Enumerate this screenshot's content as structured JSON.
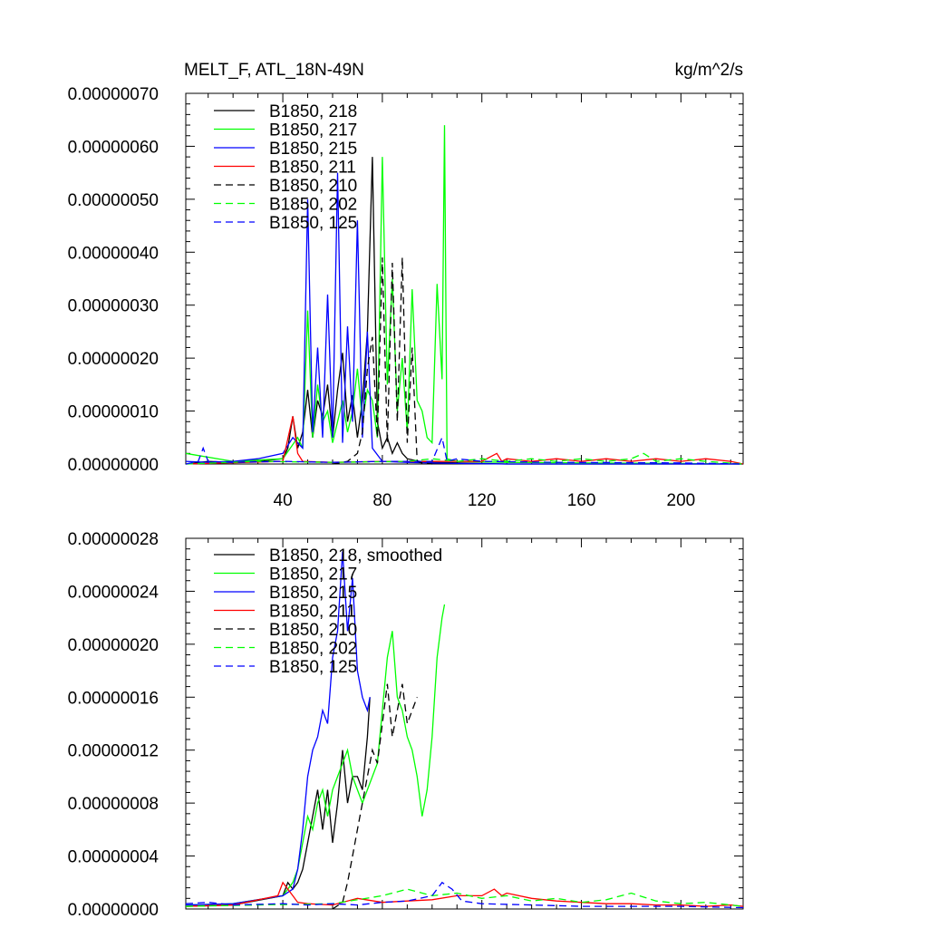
{
  "chart_data": [
    {
      "type": "line",
      "title": "MELT_F, ATL_18N-49N",
      "units": "kg/m^2/s",
      "xlim": [
        1,
        225
      ],
      "ylim": [
        0,
        7e-07
      ],
      "yticks": [
        "0.00000000",
        "0.00000010",
        "0.00000020",
        "0.00000030",
        "0.00000040",
        "0.00000050",
        "0.00000060",
        "0.00000070"
      ],
      "xticks": [
        "40",
        "80",
        "120",
        "160",
        "200"
      ],
      "series": [
        {
          "name": "B1850, 218",
          "color": "#000000",
          "dash": "solid",
          "x": [
            1,
            10,
            20,
            30,
            40,
            42,
            44,
            46,
            48,
            50,
            52,
            54,
            56,
            58,
            60,
            62,
            64,
            66,
            68,
            70,
            72,
            74,
            76,
            78,
            80,
            82,
            84,
            86,
            88,
            90,
            95,
            100,
            110,
            130,
            160,
            200,
            225
          ],
          "y": [
            0,
            5e-09,
            3e-09,
            5e-09,
            1e-08,
            3e-08,
            9e-08,
            3e-08,
            6e-08,
            1.4e-07,
            5e-08,
            1.2e-07,
            9e-08,
            1.5e-07,
            5e-08,
            1.4e-07,
            2.1e-07,
            8e-08,
            1.3e-07,
            5e-08,
            1.2e-07,
            2.5e-07,
            5.8e-07,
            8e-08,
            3e-08,
            5e-08,
            2e-08,
            4e-08,
            2e-08,
            1e-08,
            5e-09,
            3e-09,
            2e-09,
            0,
            0,
            0,
            0
          ]
        },
        {
          "name": "B1850, 217",
          "color": "#00ff00",
          "dash": "solid",
          "x": [
            1,
            20,
            40,
            46,
            48,
            50,
            52,
            54,
            56,
            58,
            60,
            62,
            64,
            66,
            68,
            70,
            72,
            74,
            76,
            78,
            80,
            82,
            84,
            86,
            88,
            90,
            92,
            94,
            96,
            98,
            100,
            102,
            104,
            105,
            106,
            110,
            130,
            160,
            200,
            225
          ],
          "y": [
            2e-08,
            5e-09,
            1e-08,
            5e-08,
            3e-08,
            2.9e-07,
            5e-08,
            1.5e-07,
            8e-08,
            1e-07,
            4e-08,
            8e-08,
            1.2e-07,
            6e-08,
            1e-07,
            1.8e-07,
            8e-08,
            1.4e-07,
            1.2e-07,
            5e-08,
            5.8e-07,
            1.5e-07,
            3.5e-07,
            1e-07,
            2e-07,
            6e-08,
            3.3e-07,
            1.2e-07,
            1e-07,
            5e-08,
            4e-08,
            3.4e-07,
            1.6e-07,
            6.4e-07,
            1e-08,
            5e-09,
            3e-09,
            2e-09,
            1e-09,
            0
          ]
        },
        {
          "name": "B1850, 215",
          "color": "#0000ff",
          "dash": "solid",
          "x": [
            1,
            10,
            20,
            30,
            40,
            44,
            48,
            50,
            52,
            54,
            56,
            58,
            60,
            62,
            64,
            66,
            68,
            70,
            72,
            74,
            76,
            80,
            90,
            100,
            110,
            130,
            160,
            200,
            225
          ],
          "y": [
            5e-09,
            3e-09,
            5e-09,
            1e-08,
            2e-08,
            5e-08,
            3e-08,
            5e-07,
            6e-08,
            2.2e-07,
            5e-08,
            3.2e-07,
            5e-08,
            5.5e-07,
            4e-08,
            2.6e-07,
            8e-08,
            4.6e-07,
            5e-08,
            2.5e-07,
            3e-08,
            5e-09,
            3e-09,
            2e-09,
            1e-09,
            0,
            0,
            0,
            0
          ]
        },
        {
          "name": "B1850, 211",
          "color": "#ff0000",
          "dash": "solid",
          "x": [
            1,
            40,
            44,
            46,
            48,
            60,
            80,
            100,
            120,
            126,
            128,
            130,
            140,
            150,
            160,
            170,
            180,
            190,
            200,
            210,
            220,
            225
          ],
          "y": [
            0,
            5e-09,
            9e-08,
            2e-08,
            5e-09,
            3e-09,
            5e-09,
            5e-09,
            5e-09,
            2e-08,
            5e-09,
            1e-08,
            5e-09,
            1e-08,
            5e-09,
            1e-08,
            5e-09,
            1e-08,
            5e-09,
            1e-08,
            5e-09,
            0
          ]
        },
        {
          "name": "B1850, 210",
          "color": "#000000",
          "dash": "dash",
          "x": [
            60,
            66,
            70,
            72,
            74,
            76,
            78,
            80,
            82,
            84,
            86,
            88,
            90,
            92,
            94,
            96,
            100
          ],
          "y": [
            0,
            5e-09,
            2e-08,
            6e-08,
            1.8e-07,
            2.4e-07,
            5e-08,
            3.9e-07,
            4e-08,
            3.8e-07,
            8e-08,
            3.9e-07,
            4e-08,
            2.2e-07,
            5e-09,
            2e-09,
            0
          ]
        },
        {
          "name": "B1850, 202",
          "color": "#00ff00",
          "dash": "dash",
          "x": [
            1,
            30,
            60,
            90,
            100,
            110,
            120,
            130,
            140,
            150,
            160,
            170,
            180,
            185,
            190,
            200,
            210,
            225
          ],
          "y": [
            0,
            5e-09,
            3e-09,
            5e-09,
            1e-08,
            5e-09,
            1e-08,
            5e-09,
            1e-08,
            5e-09,
            1e-08,
            5e-09,
            1e-08,
            2e-08,
            5e-09,
            1e-08,
            5e-09,
            0
          ]
        },
        {
          "name": "B1850, 125",
          "color": "#0000ff",
          "dash": "dash",
          "x": [
            1,
            6,
            8,
            10,
            20,
            40,
            60,
            80,
            100,
            104,
            106,
            110,
            120,
            150,
            200,
            225
          ],
          "y": [
            0,
            5e-09,
            3e-08,
            5e-09,
            3e-09,
            5e-09,
            3e-09,
            5e-09,
            5e-09,
            5e-08,
            5e-09,
            1e-08,
            5e-09,
            3e-09,
            2e-09,
            0
          ]
        }
      ]
    },
    {
      "type": "line",
      "title": "",
      "xlim": [
        1,
        225
      ],
      "ylim": [
        0,
        2.8e-07
      ],
      "yticks": [
        "0.00000000",
        "0.00000004",
        "0.00000008",
        "0.00000012",
        "0.00000016",
        "0.00000020",
        "0.00000024",
        "0.00000028"
      ],
      "xticks": [],
      "series": [
        {
          "name": "B1850, 218, smoothed",
          "color": "#000000",
          "dash": "solid",
          "x": [
            1,
            20,
            40,
            42,
            44,
            46,
            48,
            50,
            52,
            54,
            56,
            58,
            60,
            62,
            64,
            66,
            68,
            70,
            72,
            74,
            75
          ],
          "y": [
            2e-09,
            3e-09,
            1e-08,
            2e-08,
            1.5e-08,
            2e-08,
            3e-08,
            5e-08,
            7e-08,
            9e-08,
            6e-08,
            9e-08,
            5e-08,
            8e-08,
            1.2e-07,
            8e-08,
            1e-07,
            1e-07,
            9e-08,
            1.3e-07,
            1.6e-07
          ]
        },
        {
          "name": "B1850, 217",
          "color": "#00ff00",
          "dash": "solid",
          "x": [
            1,
            20,
            40,
            44,
            46,
            48,
            50,
            52,
            54,
            56,
            58,
            60,
            62,
            64,
            66,
            68,
            70,
            72,
            74,
            76,
            78,
            80,
            82,
            84,
            86,
            88,
            90,
            92,
            94,
            96,
            98,
            100,
            102,
            104,
            105
          ],
          "y": [
            3e-09,
            4e-09,
            1e-08,
            2e-08,
            3e-08,
            5e-08,
            7e-08,
            6e-08,
            8e-08,
            9e-08,
            7e-08,
            9e-08,
            1e-07,
            1.1e-07,
            1.2e-07,
            1e-07,
            9e-08,
            8e-08,
            9e-08,
            1e-07,
            1.1e-07,
            1.5e-07,
            1.9e-07,
            2.1e-07,
            1.6e-07,
            1.5e-07,
            1.3e-07,
            1.2e-07,
            1e-07,
            7e-08,
            9e-08,
            1.3e-07,
            1.9e-07,
            2.2e-07,
            2.3e-07
          ]
        },
        {
          "name": "B1850, 215",
          "color": "#0000ff",
          "dash": "solid",
          "x": [
            1,
            20,
            40,
            44,
            46,
            48,
            50,
            52,
            54,
            56,
            58,
            60,
            62,
            64,
            66,
            68,
            70,
            72,
            74,
            75
          ],
          "y": [
            3e-09,
            4e-09,
            1e-08,
            1.5e-08,
            3e-08,
            6e-08,
            1e-07,
            1.2e-07,
            1.3e-07,
            1.5e-07,
            1.4e-07,
            1.9e-07,
            2.1e-07,
            2.7e-07,
            2.1e-07,
            2.5e-07,
            1.8e-07,
            1.6e-07,
            1.5e-07,
            1.6e-07
          ]
        },
        {
          "name": "B1850, 211",
          "color": "#ff0000",
          "dash": "solid",
          "x": [
            1,
            20,
            38,
            40,
            42,
            44,
            46,
            50,
            60,
            70,
            80,
            90,
            100,
            110,
            120,
            125,
            128,
            130,
            140,
            150,
            160,
            170,
            180,
            190,
            200,
            210,
            220,
            225
          ],
          "y": [
            2e-09,
            3e-09,
            1e-08,
            2e-08,
            1.5e-08,
            1e-08,
            5e-09,
            4e-09,
            3e-09,
            8e-09,
            5e-09,
            6e-09,
            7e-09,
            1e-08,
            1e-08,
            1.5e-08,
            1e-08,
            1.2e-08,
            8e-09,
            6e-09,
            5e-09,
            4e-09,
            4e-09,
            3e-09,
            3e-09,
            2e-09,
            3e-09,
            2e-09
          ]
        },
        {
          "name": "B1850, 210",
          "color": "#000000",
          "dash": "dash",
          "x": [
            60,
            64,
            66,
            68,
            70,
            72,
            74,
            76,
            78,
            80,
            82,
            84,
            86,
            88,
            90,
            92,
            94
          ],
          "y": [
            0,
            5e-09,
            2e-08,
            4e-08,
            6e-08,
            8e-08,
            1e-07,
            1.2e-07,
            1.1e-07,
            1.4e-07,
            1.7e-07,
            1.3e-07,
            1.5e-07,
            1.7e-07,
            1.4e-07,
            1.5e-07,
            1.6e-07
          ]
        },
        {
          "name": "B1850, 202",
          "color": "#00ff00",
          "dash": "dash",
          "x": [
            1,
            30,
            60,
            80,
            90,
            100,
            110,
            120,
            130,
            140,
            150,
            160,
            170,
            180,
            190,
            200,
            210,
            220,
            225
          ],
          "y": [
            2e-09,
            3e-09,
            4e-09,
            1e-08,
            1.5e-08,
            1e-08,
            1.2e-08,
            8e-09,
            1e-08,
            6e-09,
            8e-09,
            5e-09,
            7e-09,
            1.2e-08,
            6e-09,
            4e-09,
            5e-09,
            3e-09,
            2e-09
          ]
        },
        {
          "name": "B1850, 125",
          "color": "#0000ff",
          "dash": "dash",
          "x": [
            1,
            10,
            20,
            40,
            50,
            60,
            70,
            80,
            90,
            100,
            104,
            108,
            112,
            120,
            140,
            160,
            200,
            225
          ],
          "y": [
            4e-09,
            5e-09,
            3e-09,
            4e-09,
            3e-09,
            4e-09,
            3e-09,
            5e-09,
            6e-09,
            1e-08,
            2e-08,
            1.5e-08,
            6e-09,
            4e-09,
            3e-09,
            2e-09,
            2e-09,
            1e-09
          ]
        }
      ]
    }
  ]
}
